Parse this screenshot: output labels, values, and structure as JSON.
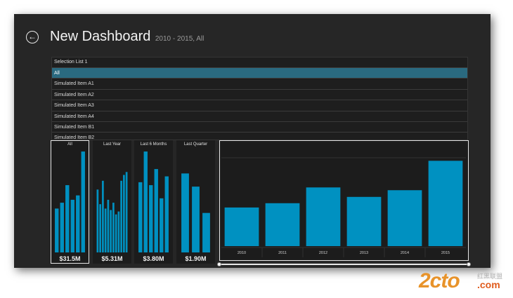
{
  "app": {
    "title": "New Dashboard",
    "subtitle": "2010 - 2015, All",
    "back_icon": "arrow-left-icon"
  },
  "selection_list": {
    "header": "Selection List 1",
    "items": [
      {
        "label": "All",
        "selected": true
      },
      {
        "label": "Simulated Item A1",
        "selected": false
      },
      {
        "label": "Simulated Item A2",
        "selected": false
      },
      {
        "label": "Simulated Item A3",
        "selected": false
      },
      {
        "label": "Simulated Item A4",
        "selected": false
      },
      {
        "label": "Simulated Item B1",
        "selected": false
      },
      {
        "label": "Simulated Item B2",
        "selected": false
      }
    ]
  },
  "colors": {
    "bar": "#0091c1",
    "background": "#262626",
    "panel": "#1c1c1c",
    "selected_row": "#2a6a80"
  },
  "chart_data": [
    {
      "type": "bar",
      "title": "All",
      "value_label": "$31.5M",
      "selected": true,
      "values": [
        30,
        34,
        46,
        36,
        39,
        69
      ]
    },
    {
      "type": "bar",
      "title": "Last Year",
      "value_label": "$5.31M",
      "selected": false,
      "values": [
        43,
        33,
        49,
        30,
        36,
        29,
        34,
        26,
        28,
        49,
        53,
        55
      ]
    },
    {
      "type": "bar",
      "title": "Last 6 Months",
      "value_label": "$3.80M",
      "selected": false,
      "values": [
        48,
        69,
        46,
        57,
        37,
        52
      ]
    },
    {
      "type": "bar",
      "title": "Last Quarter",
      "value_label": "$1.90M",
      "selected": false,
      "values": [
        54,
        45,
        27
      ]
    },
    {
      "type": "bar",
      "title": "",
      "categories": [
        "2010",
        "2011",
        "2012",
        "2013",
        "2014",
        "2015"
      ],
      "values": [
        30.6,
        34.0,
        46.5,
        39.0,
        44.3,
        67.6
      ],
      "grid": true,
      "ylim": [
        0,
        80
      ]
    }
  ],
  "watermark": {
    "main": "2cto",
    "cn": "红黑联盟",
    "domain": ".com"
  }
}
